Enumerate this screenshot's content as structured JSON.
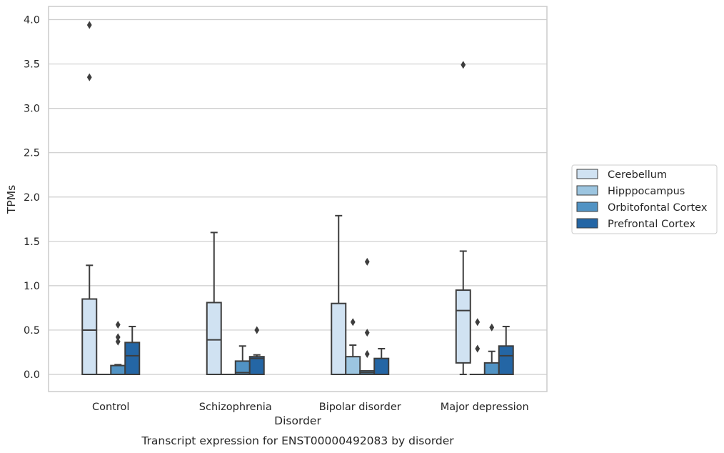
{
  "caption": "Transcript expression for ENST00000492083 by disorder",
  "chart_data": {
    "type": "box",
    "title": "",
    "xlabel": "Disorder",
    "ylabel": "TPMs",
    "ylim": [
      -0.19,
      4.15
    ],
    "yticks": [
      0.0,
      0.5,
      1.0,
      1.5,
      2.0,
      2.5,
      3.0,
      3.5,
      4.0
    ],
    "ytick_labels": [
      "0.0",
      "0.5",
      "1.0",
      "1.5",
      "2.0",
      "2.5",
      "3.0",
      "3.5",
      "4.0"
    ],
    "grid": true,
    "legend_position": "right",
    "categories": [
      "Control",
      "Schizophrenia",
      "Bipolar disorder",
      "Major depression"
    ],
    "series": [
      {
        "name": "Cerebellum",
        "color": "#d0e2f2",
        "boxes": [
          {
            "q1": 0.0,
            "median": 0.5,
            "q3": 0.85,
            "whisker_low": 0.0,
            "whisker_high": 1.23,
            "outliers": [
              3.35,
              3.94
            ]
          },
          {
            "q1": 0.0,
            "median": 0.39,
            "q3": 0.81,
            "whisker_low": 0.0,
            "whisker_high": 1.6,
            "outliers": []
          },
          {
            "q1": 0.0,
            "median": 0.0,
            "q3": 0.8,
            "whisker_low": 0.0,
            "whisker_high": 1.79,
            "outliers": []
          },
          {
            "q1": 0.13,
            "median": 0.72,
            "q3": 0.95,
            "whisker_low": 0.0,
            "whisker_high": 1.39,
            "outliers": [
              3.49
            ]
          }
        ]
      },
      {
        "name": "Hipppocampus",
        "color": "#9cc5e0",
        "boxes": [
          {
            "q1": 0.0,
            "median": 0.0,
            "q3": 0.0,
            "whisker_low": 0.0,
            "whisker_high": 0.0,
            "outliers": []
          },
          {
            "q1": 0.0,
            "median": 0.0,
            "q3": 0.0,
            "whisker_low": 0.0,
            "whisker_high": 0.0,
            "outliers": []
          },
          {
            "q1": 0.0,
            "median": 0.0,
            "q3": 0.2,
            "whisker_low": 0.0,
            "whisker_high": 0.33,
            "outliers": [
              0.59
            ]
          },
          {
            "q1": 0.0,
            "median": 0.0,
            "q3": 0.0,
            "whisker_low": 0.0,
            "whisker_high": 0.0,
            "outliers": [
              0.29,
              0.59
            ]
          }
        ]
      },
      {
        "name": "Orbitofontal Cortex",
        "color": "#5193c4",
        "boxes": [
          {
            "q1": 0.0,
            "median": 0.0,
            "q3": 0.1,
            "whisker_low": 0.0,
            "whisker_high": 0.11,
            "outliers": [
              0.37,
              0.42,
              0.56
            ]
          },
          {
            "q1": 0.0,
            "median": 0.02,
            "q3": 0.15,
            "whisker_low": 0.0,
            "whisker_high": 0.32,
            "outliers": []
          },
          {
            "q1": 0.0,
            "median": 0.02,
            "q3": 0.04,
            "whisker_low": 0.0,
            "whisker_high": 0.04,
            "outliers": [
              0.23,
              0.47,
              1.27
            ]
          },
          {
            "q1": 0.0,
            "median": 0.0,
            "q3": 0.13,
            "whisker_low": 0.0,
            "whisker_high": 0.26,
            "outliers": [
              0.53
            ]
          }
        ]
      },
      {
        "name": "Prefrontal Cortex",
        "color": "#2466a5",
        "boxes": [
          {
            "q1": 0.0,
            "median": 0.21,
            "q3": 0.36,
            "whisker_low": 0.0,
            "whisker_high": 0.54,
            "outliers": []
          },
          {
            "q1": 0.0,
            "median": 0.18,
            "q3": 0.2,
            "whisker_low": 0.0,
            "whisker_high": 0.22,
            "outliers": [
              0.5
            ]
          },
          {
            "q1": 0.0,
            "median": 0.0,
            "q3": 0.18,
            "whisker_low": 0.0,
            "whisker_high": 0.29,
            "outliers": []
          },
          {
            "q1": 0.0,
            "median": 0.21,
            "q3": 0.32,
            "whisker_low": 0.0,
            "whisker_high": 0.54,
            "outliers": []
          }
        ]
      }
    ]
  }
}
